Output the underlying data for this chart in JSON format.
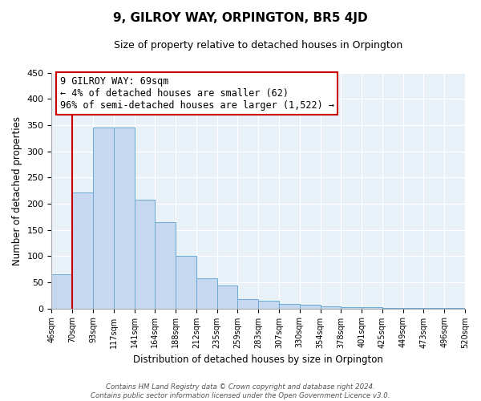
{
  "title": "9, GILROY WAY, ORPINGTON, BR5 4JD",
  "subtitle": "Size of property relative to detached houses in Orpington",
  "xlabel": "Distribution of detached houses by size in Orpington",
  "ylabel": "Number of detached properties",
  "bar_values": [
    65,
    222,
    345,
    345,
    208,
    165,
    100,
    57,
    43,
    17,
    15,
    8,
    7,
    4,
    3,
    2,
    1,
    1,
    1,
    1
  ],
  "bin_labels": [
    "46sqm",
    "70sqm",
    "93sqm",
    "117sqm",
    "141sqm",
    "164sqm",
    "188sqm",
    "212sqm",
    "235sqm",
    "259sqm",
    "283sqm",
    "307sqm",
    "330sqm",
    "354sqm",
    "378sqm",
    "401sqm",
    "425sqm",
    "449sqm",
    "473sqm",
    "496sqm",
    "520sqm"
  ],
  "bar_color": "#c5d8f0",
  "bar_edge_color": "#6aaad4",
  "property_line_color": "#cc0000",
  "annotation_text_line1": "9 GILROY WAY: 69sqm",
  "annotation_text_line2": "← 4% of detached houses are smaller (62)",
  "annotation_text_line3": "96% of semi-detached houses are larger (1,522) →",
  "annotation_box_color": "#ffffff",
  "annotation_box_edge": "#cc0000",
  "ylim": [
    0,
    450
  ],
  "yticks": [
    0,
    50,
    100,
    150,
    200,
    250,
    300,
    350,
    400,
    450
  ],
  "footer_line1": "Contains HM Land Registry data © Crown copyright and database right 2024.",
  "footer_line2": "Contains public sector information licensed under the Open Government Licence v3.0.",
  "background_color": "#ffffff",
  "plot_bg_color": "#e8f0f8",
  "grid_color": "#ffffff"
}
